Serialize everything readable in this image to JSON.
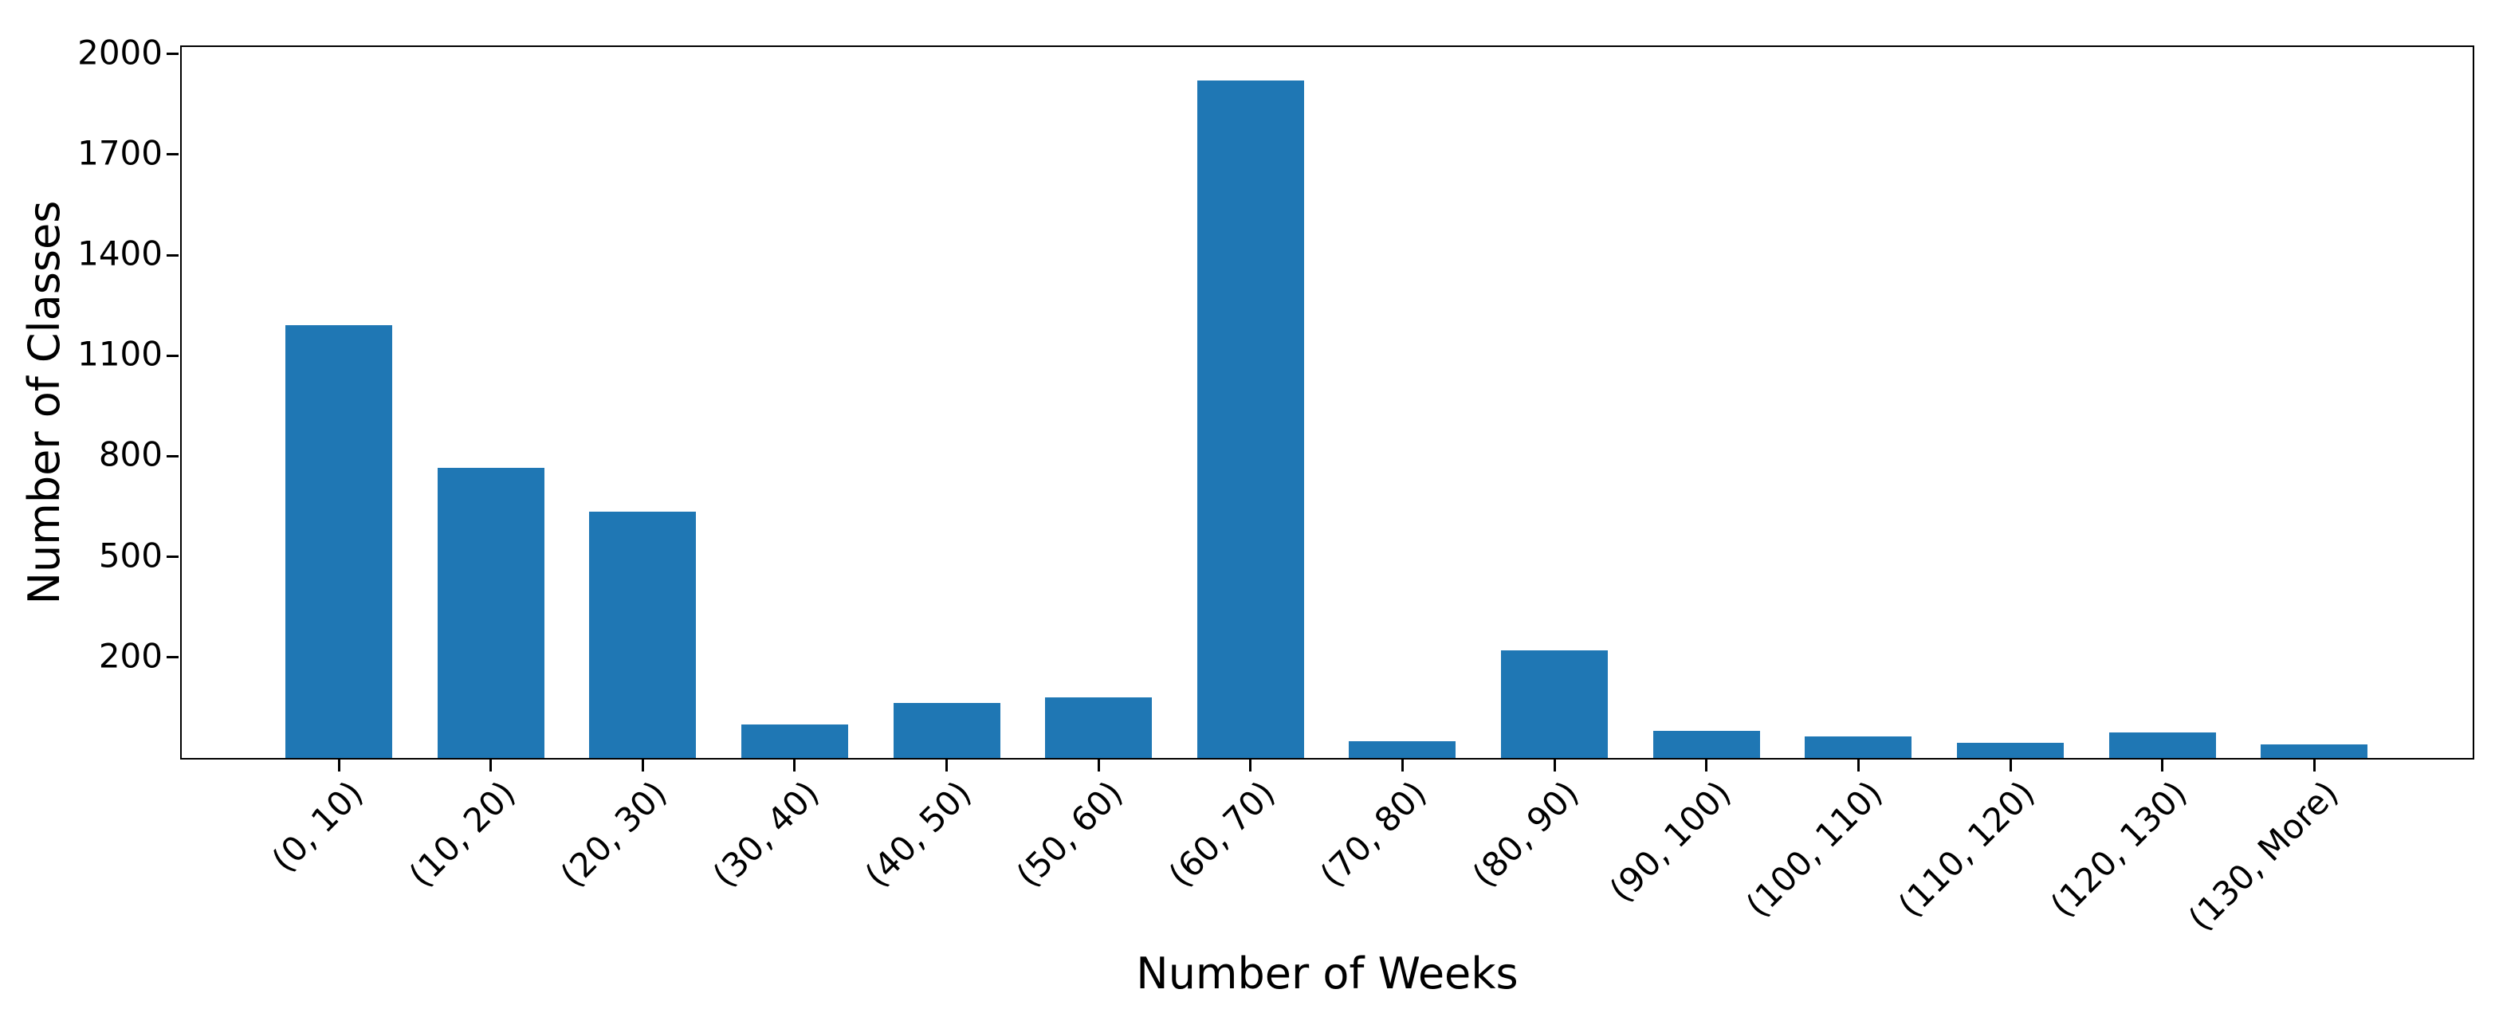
{
  "chart_data": {
    "type": "bar",
    "title": "",
    "xlabel": "Number of Weeks",
    "ylabel": "Number of Classes",
    "categories": [
      "(0, 10)",
      "(10, 20)",
      "(20, 30)",
      "(30, 40)",
      "(40, 50)",
      "(50, 60)",
      "(60, 70)",
      "(70, 80)",
      "(80, 90)",
      "(90, 100)",
      "(100, 110)",
      "(110, 120)",
      "(120, 130)",
      "(130, More)"
    ],
    "values": [
      1290,
      865,
      735,
      100,
      165,
      180,
      2020,
      50,
      320,
      80,
      65,
      45,
      75,
      40
    ],
    "yticks": [
      200,
      500,
      800,
      1100,
      1400,
      1700,
      2000
    ],
    "ylim": [
      -100,
      2021
    ],
    "baseline": -100,
    "bar_color": "#1f77b4",
    "axis_color": "#000000",
    "grid": false,
    "legend": false,
    "x_tick_label_rotation_deg": 45
  }
}
